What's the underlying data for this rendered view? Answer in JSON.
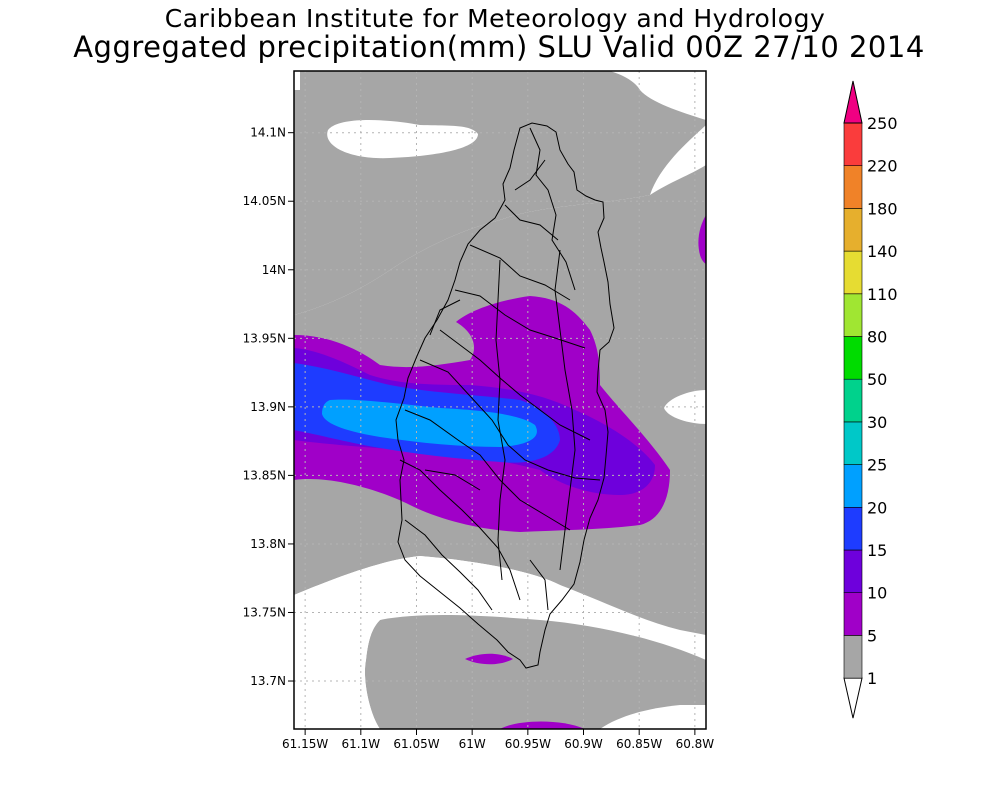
{
  "title": {
    "line1": "Caribbean Institute for Meteorology and Hydrology",
    "line2": "Aggregated precipitation(mm) SLU Valid 00Z 27/10 2014"
  },
  "map": {
    "lon_range": [
      -61.16,
      -60.79
    ],
    "lat_range": [
      13.665,
      14.145
    ],
    "lat_ticks": [
      {
        "value": 14.1,
        "label": "14.1N"
      },
      {
        "value": 14.05,
        "label": "14.05N"
      },
      {
        "value": 14.0,
        "label": "14N"
      },
      {
        "value": 13.95,
        "label": "13.95N"
      },
      {
        "value": 13.9,
        "label": "13.9N"
      },
      {
        "value": 13.85,
        "label": "13.85N"
      },
      {
        "value": 13.8,
        "label": "13.8N"
      },
      {
        "value": 13.75,
        "label": "13.75N"
      },
      {
        "value": 13.7,
        "label": "13.7N"
      }
    ],
    "lon_ticks": [
      {
        "value": -61.15,
        "label": "61.15W"
      },
      {
        "value": -61.1,
        "label": "61.1W"
      },
      {
        "value": -61.05,
        "label": "61.05W"
      },
      {
        "value": -61.0,
        "label": "61W"
      },
      {
        "value": -60.95,
        "label": "60.95W"
      },
      {
        "value": -60.9,
        "label": "60.9W"
      },
      {
        "value": -60.85,
        "label": "60.85W"
      },
      {
        "value": -60.8,
        "label": "60.8W"
      }
    ],
    "grid": true
  },
  "colorbar": {
    "levels": [
      "1",
      "5",
      "10",
      "15",
      "20",
      "25",
      "30",
      "50",
      "80",
      "110",
      "140",
      "180",
      "220",
      "250"
    ],
    "colors": [
      "#ffffff",
      "#a6a6a6",
      "#a000c8",
      "#6e00dc",
      "#1e3cff",
      "#00a0ff",
      "#00c8c8",
      "#00d28c",
      "#00dc00",
      "#a0e632",
      "#e6dc32",
      "#e6af2d",
      "#f08228",
      "#fa3c3c",
      "#f00082"
    ]
  }
}
